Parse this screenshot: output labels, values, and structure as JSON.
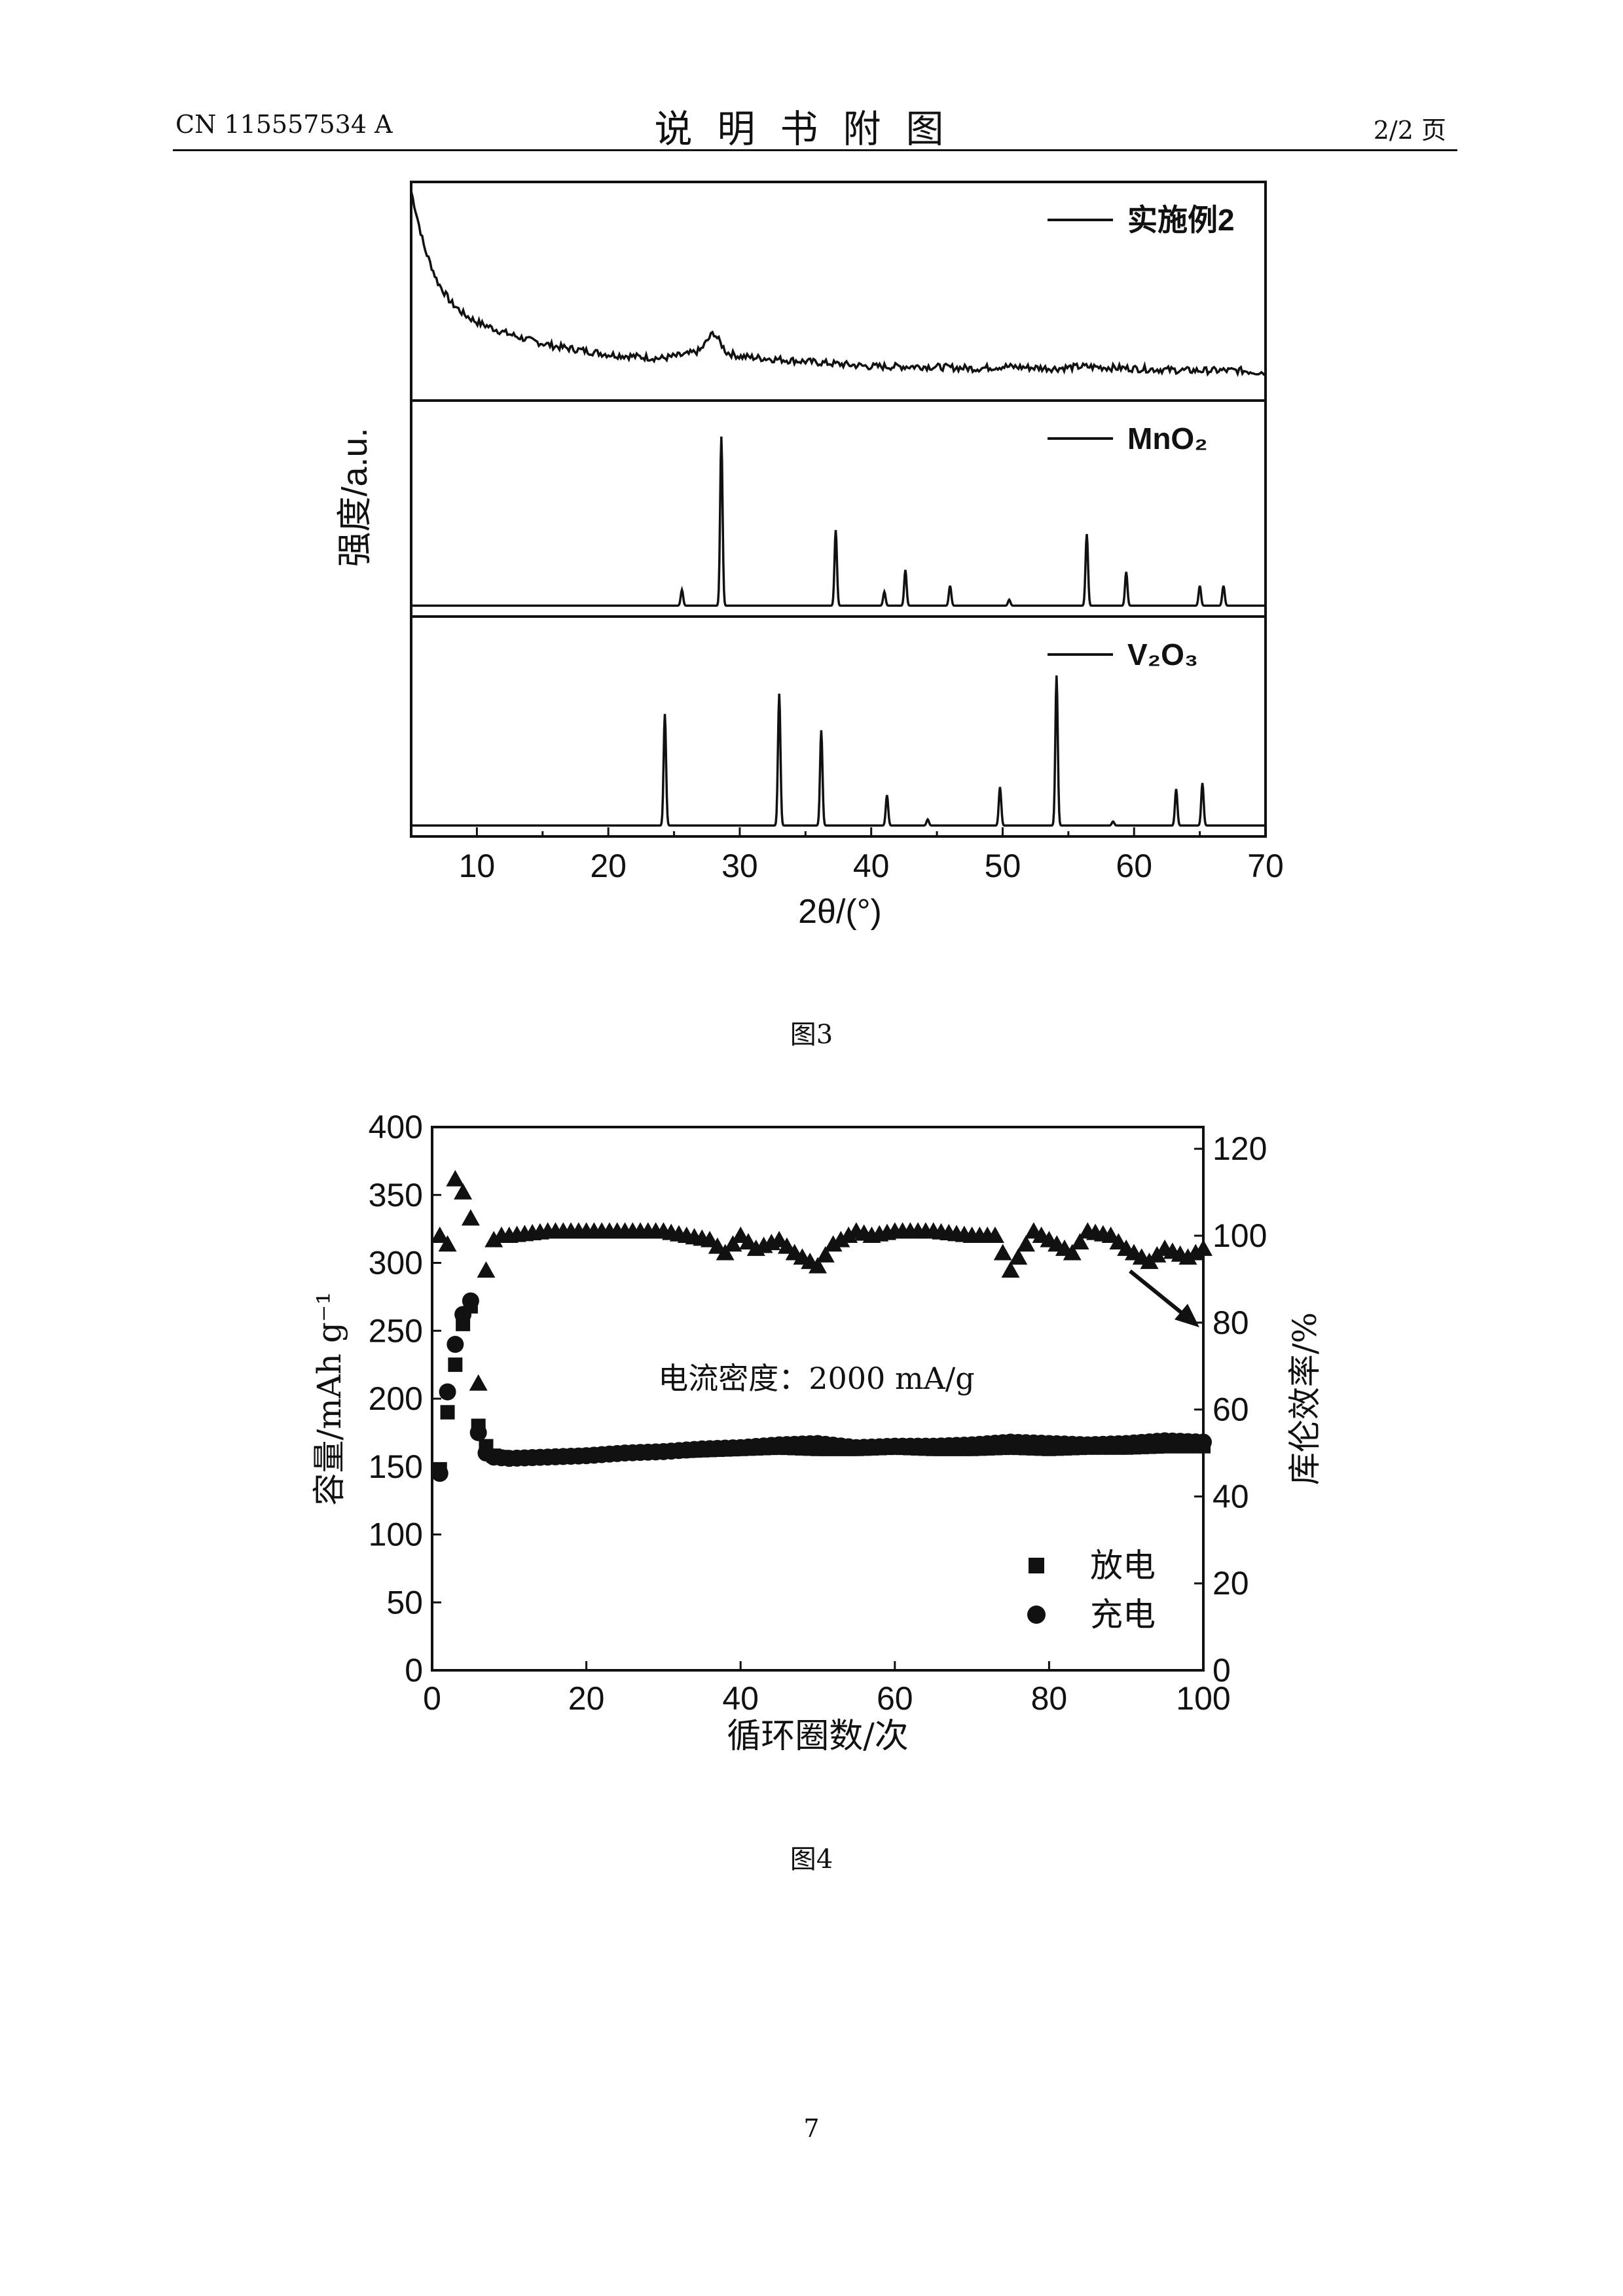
{
  "header": {
    "publication": "CN 115557534 A",
    "title": "说明书附图",
    "page_of": "2/2 页"
  },
  "figure3": {
    "caption": "图3",
    "ylabel": "强度/a.u.",
    "xlabel": "2θ/(°)",
    "chart_data": {
      "type": "line",
      "xlim": [
        5,
        70
      ],
      "xticks": [
        "10",
        "20",
        "30",
        "40",
        "50",
        "60",
        "70"
      ],
      "panels": [
        {
          "name": "实施例2",
          "kind": "noisy-pattern",
          "x": [
            5,
            6,
            7,
            8,
            9,
            10,
            12,
            14,
            16,
            18,
            20,
            22,
            24,
            26,
            27,
            28,
            29,
            30,
            32,
            34,
            36,
            38,
            40,
            44,
            48,
            50,
            54,
            56,
            60,
            64,
            68,
            70
          ],
          "y": [
            1.0,
            0.72,
            0.55,
            0.45,
            0.39,
            0.35,
            0.3,
            0.26,
            0.23,
            0.21,
            0.19,
            0.18,
            0.17,
            0.19,
            0.21,
            0.3,
            0.2,
            0.18,
            0.17,
            0.16,
            0.15,
            0.14,
            0.13,
            0.13,
            0.12,
            0.13,
            0.12,
            0.13,
            0.12,
            0.11,
            0.11,
            0.1
          ]
        },
        {
          "name": "MnO₂",
          "kind": "peaks",
          "peaks": [
            [
              25.6,
              0.08
            ],
            [
              28.6,
              0.85
            ],
            [
              37.3,
              0.38
            ],
            [
              41.0,
              0.07
            ],
            [
              42.6,
              0.18
            ],
            [
              46.0,
              0.1
            ],
            [
              50.5,
              0.03
            ],
            [
              56.4,
              0.36
            ],
            [
              59.4,
              0.17
            ],
            [
              65.0,
              0.1
            ],
            [
              66.8,
              0.1
            ]
          ]
        },
        {
          "name": "V₂O₃",
          "kind": "peaks",
          "peaks": [
            [
              24.3,
              0.55
            ],
            [
              33.0,
              0.65
            ],
            [
              36.2,
              0.47
            ],
            [
              41.2,
              0.15
            ],
            [
              44.3,
              0.03
            ],
            [
              49.8,
              0.19
            ],
            [
              54.1,
              0.74
            ],
            [
              58.4,
              0.02
            ],
            [
              63.2,
              0.18
            ],
            [
              65.2,
              0.21
            ]
          ]
        }
      ]
    }
  },
  "figure4": {
    "caption": "图4",
    "annotation": "电流密度：2000 mA/g",
    "chart_data": {
      "type": "scatter",
      "xlabel": "循环圈数/次",
      "ylabel_left": "容量/mAh g⁻¹",
      "ylabel_right": "库伦效率/%",
      "xlim": [
        0,
        100
      ],
      "ylim_left": [
        0,
        400
      ],
      "ylim_right": [
        0,
        125
      ],
      "xticks": [
        "0",
        "20",
        "40",
        "60",
        "80",
        "100"
      ],
      "yticks_left": [
        "0",
        "50",
        "100",
        "150",
        "200",
        "250",
        "300",
        "350",
        "400"
      ],
      "yticks_right": [
        "0",
        "20",
        "40",
        "60",
        "80",
        "100",
        "120"
      ],
      "series": [
        {
          "name": "放电",
          "marker": "square",
          "x": [
            1,
            2,
            3,
            4,
            5,
            6,
            7,
            8,
            10,
            15,
            20,
            25,
            30,
            35,
            40,
            45,
            50,
            55,
            60,
            65,
            70,
            75,
            80,
            85,
            90,
            95,
            100
          ],
          "y": [
            148,
            190,
            225,
            255,
            268,
            180,
            165,
            158,
            156,
            157,
            158,
            160,
            161,
            162,
            163,
            164,
            163,
            163,
            164,
            163,
            163,
            164,
            163,
            164,
            164,
            165,
            165
          ]
        },
        {
          "name": "充电",
          "marker": "circle",
          "x": [
            1,
            2,
            3,
            4,
            5,
            6,
            7,
            8,
            10,
            15,
            20,
            25,
            30,
            35,
            40,
            45,
            50,
            55,
            60,
            65,
            70,
            75,
            80,
            85,
            90,
            95,
            100
          ],
          "y": [
            145,
            205,
            240,
            262,
            272,
            175,
            160,
            157,
            156,
            157,
            158,
            160,
            161,
            163,
            164,
            166,
            167,
            164,
            165,
            165,
            166,
            168,
            167,
            166,
            167,
            169,
            168
          ]
        },
        {
          "name": "",
          "marker": "triangle",
          "axis": "right",
          "x": [
            1,
            2,
            3,
            4,
            5,
            6,
            7,
            8,
            9,
            10,
            15,
            20,
            25,
            30,
            33,
            36,
            38,
            40,
            42,
            45,
            47,
            50,
            52,
            55,
            57,
            60,
            65,
            70,
            73,
            75,
            78,
            80,
            83,
            85,
            88,
            90,
            93,
            95,
            98,
            100
          ],
          "y": [
            100,
            98,
            113,
            110,
            104,
            66,
            92,
            99,
            100,
            100,
            101,
            101,
            101,
            101,
            100,
            99,
            96,
            100,
            97,
            99,
            96,
            93,
            98,
            101,
            100,
            101,
            101,
            100,
            100,
            92,
            101,
            99,
            96,
            101,
            100,
            97,
            94,
            97,
            95,
            97
          ]
        }
      ]
    }
  },
  "page_number": "7"
}
